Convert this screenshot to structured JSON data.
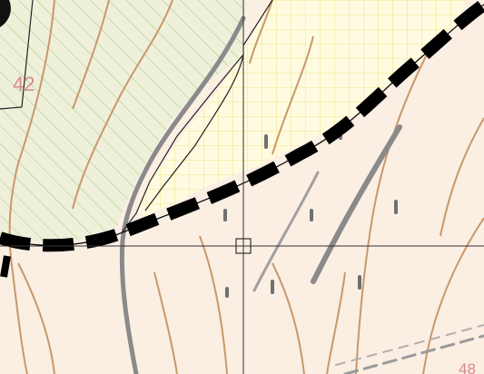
{
  "map": {
    "labels": {
      "contour_top_left": "42",
      "contour_bottom_right": "48"
    },
    "colors": {
      "base": "#fbeee3",
      "contour": "#c9986a",
      "hatched_fill": "#eef0da",
      "hatch_stroke": "#a9cf8c",
      "grid_fill": "#fffbe0",
      "grid_stroke": "#f0e58a",
      "boundary": "#000000",
      "crosshair": "#333333",
      "road": "#7a7a7a",
      "annotation": "#d88a8a"
    },
    "features": {
      "boundary_style": "dashed-thick",
      "crosshair": "center-cursor",
      "hatched_area": "diagonal-hatch",
      "grid_area": "yellow-grid"
    }
  }
}
